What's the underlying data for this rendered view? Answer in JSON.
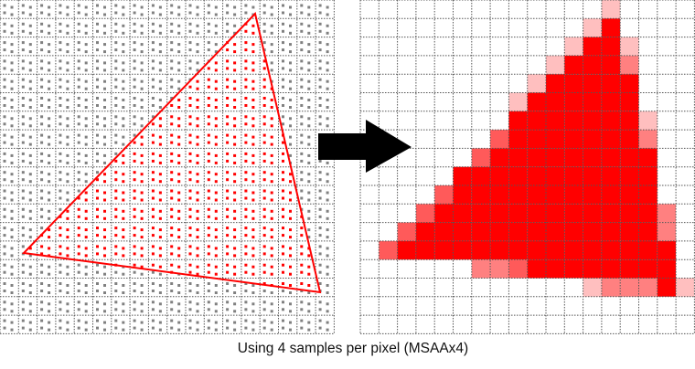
{
  "caption": "Using 4 samples per pixel (MSAAx4)",
  "samples_per_pixel": 4,
  "grid_size": 18,
  "colors": {
    "triangle": "#ff0000",
    "sample_inside": "#ff0000",
    "sample_outside": "#808080",
    "grid": "#555555",
    "arrow": "#000000",
    "coverage_levels": [
      "#ffffff",
      "#ffbfbf",
      "#ff8080",
      "#ff5a5a",
      "#ff0000"
    ]
  },
  "coverage_rows": [
    "000000000000010000",
    "000000000000140000",
    "000000000001441000",
    "000000000014442000",
    "000000000144444000",
    "000000001444444000",
    "000000004444444100",
    "000000034444444200",
    "000000344444444400",
    "000004444444444400",
    "000034444444444400",
    "000344444444444420",
    "003444444444444420",
    "034444444444444440",
    "000000223444444440",
    "000000000000122241",
    "000000000000000000",
    "000000000000000000"
  ]
}
